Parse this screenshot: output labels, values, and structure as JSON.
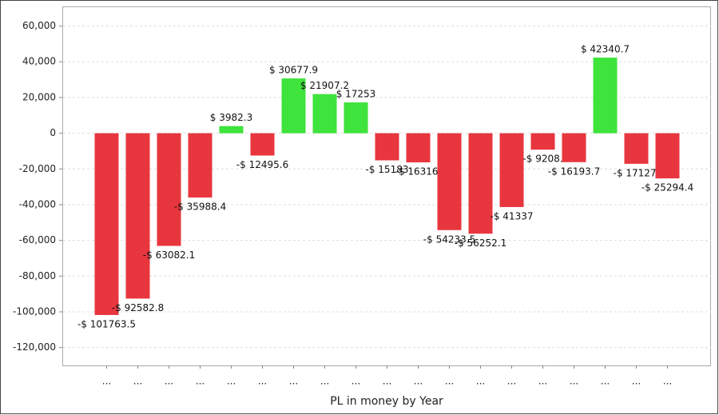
{
  "chart_data": {
    "type": "bar",
    "xlabel": "PL in money by Year",
    "categories": [
      "...",
      "...",
      "...",
      "...",
      "...",
      "...",
      "...",
      "...",
      "...",
      "...",
      "...",
      "...",
      "...",
      "...",
      "...",
      "...",
      "...",
      "...",
      "..."
    ],
    "values": [
      -101763.5,
      -92582.8,
      -63082.1,
      -35988.4,
      3982.3,
      -12495.6,
      30677.9,
      21907.2,
      17253,
      -15183,
      -16316,
      -54233.5,
      -56252.1,
      -41337,
      -9208,
      -16193.7,
      42340.7,
      -17127,
      -25294.4
    ],
    "value_labels": [
      "-$ 101763.5",
      "-$ 92582.8",
      "-$ 63082.1",
      "-$ 35988.4",
      "$ 3982.3",
      "-$ 12495.6",
      "$ 30677.9",
      "$ 21907.2",
      "$ 17253",
      "-$ 15183",
      "-$ 16316.",
      "-$ 54233.5",
      "-$ 56252.1",
      "-$ 41337",
      "-$ 9208.",
      "-$ 16193.7",
      "$ 42340.7",
      "-$ 17127.",
      "-$ 25294.4"
    ],
    "color_positive": "#3ee33c",
    "color_negative": "#e8363e",
    "ylim": [
      -130000,
      71000
    ],
    "yticks": [
      {
        "value": -120000,
        "label": "-120,000"
      },
      {
        "value": -100000,
        "label": "-100,000"
      },
      {
        "value": -80000,
        "label": "-80,000"
      },
      {
        "value": -60000,
        "label": "-60,000"
      },
      {
        "value": -40000,
        "label": "-40,000"
      },
      {
        "value": -20000,
        "label": "-20,000"
      },
      0,
      {
        "value": 20000,
        "label": "20,000"
      },
      {
        "value": 40000,
        "label": "40,000"
      },
      {
        "value": 60000,
        "label": "60,000"
      }
    ],
    "grid": true
  }
}
